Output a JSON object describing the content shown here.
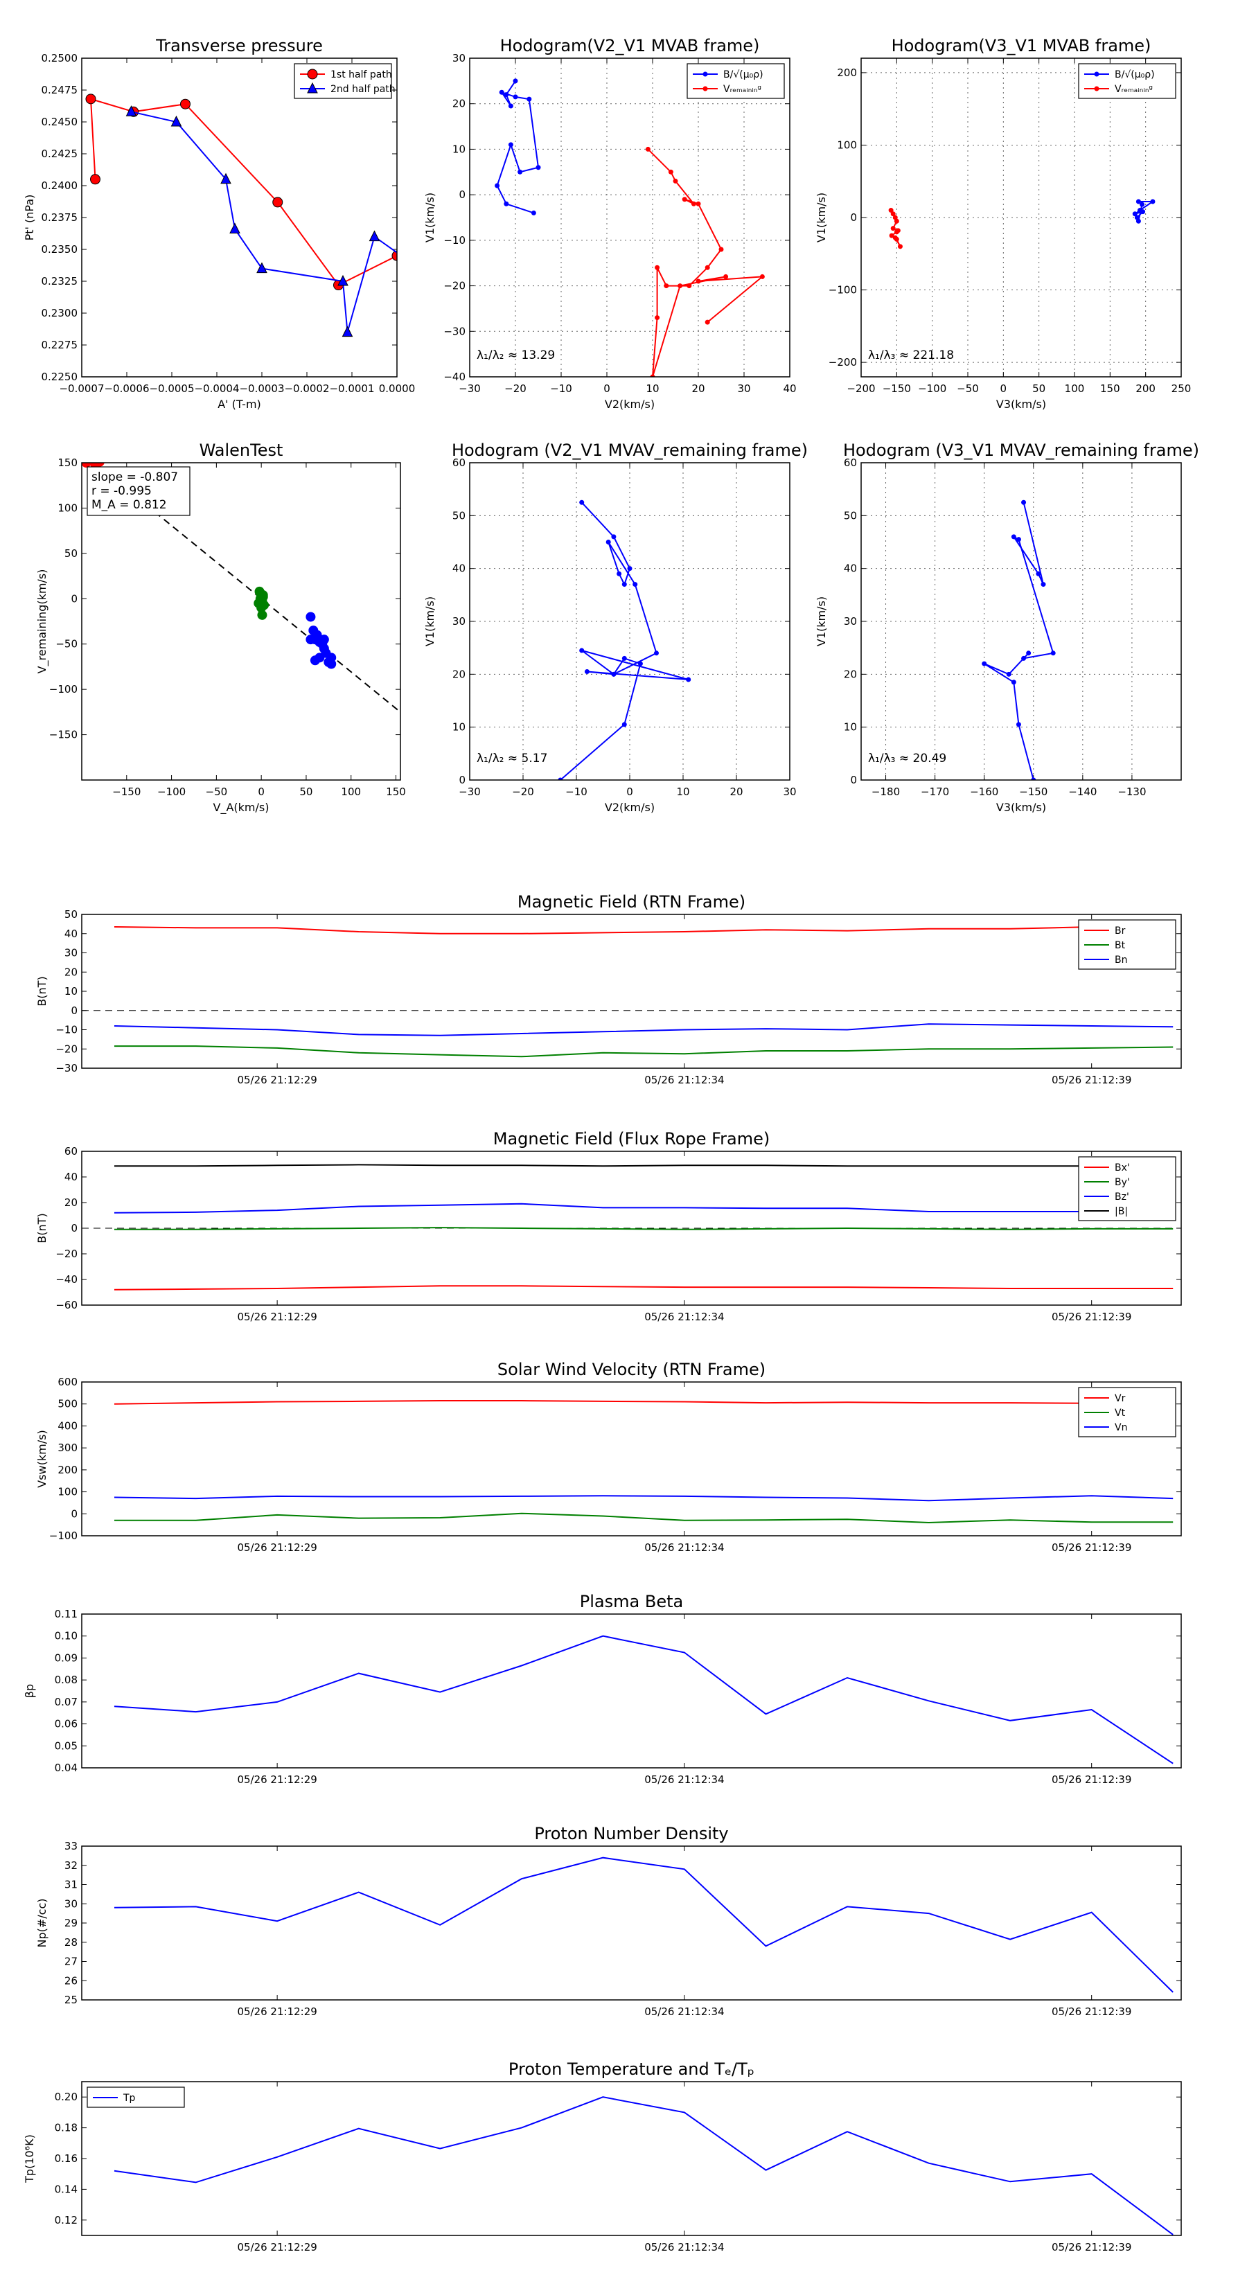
{
  "colors": {
    "red": "#ff0000",
    "blue": "#0000ff",
    "green": "#008000",
    "black": "#000000"
  },
  "chart_data": [
    {
      "type": "line",
      "title": "Transverse pressure",
      "xlabel": "A' (T-m)",
      "ylabel": "Pt' (nPa)",
      "xlim": [
        -0.0007,
        0.0
      ],
      "ylim": [
        0.225,
        0.25
      ],
      "xticks": [
        -0.0007,
        -0.0006,
        -0.0005,
        -0.0004,
        -0.0003,
        -0.0002,
        -0.0001,
        0.0
      ],
      "xtick_labels": [
        "−0.0007",
        "−0.0006",
        "−0.0005",
        "−0.0004",
        "−0.0003",
        "−0.0002",
        "−0.0001",
        "0.0000"
      ],
      "yticks": [
        0.225,
        0.2275,
        0.23,
        0.2325,
        0.235,
        0.2375,
        0.24,
        0.2425,
        0.245,
        0.2475,
        0.25
      ],
      "ytick_labels": [
        "0.2250",
        "0.2275",
        "0.2300",
        "0.2325",
        "0.2350",
        "0.2375",
        "0.2400",
        "0.2425",
        "0.2450",
        "0.2475",
        "0.2500"
      ],
      "legend": "top-right",
      "grid": false,
      "series": [
        {
          "name": "1st half path",
          "color": "#ff0000",
          "marker": "circle",
          "x": [
            -0.00067,
            -0.00068,
            -0.000585,
            -0.00047,
            -0.000265,
            -0.00013,
            0.0,
            0.00012
          ],
          "y": [
            0.2405,
            0.2468,
            0.2458,
            0.2464,
            0.2387,
            0.2322,
            0.2345,
            0.2335
          ]
        },
        {
          "name": "2nd half path",
          "color": "#0000ff",
          "marker": "triangle",
          "x": [
            -0.00059,
            -0.00049,
            -0.00038,
            -0.00036,
            -0.0003,
            -0.00012,
            -0.00011,
            -5e-05,
            3e-05
          ],
          "y": [
            0.2458,
            0.245,
            0.2405,
            0.2366,
            0.2335,
            0.2325,
            0.2285,
            0.236,
            0.234
          ]
        }
      ]
    },
    {
      "type": "line",
      "title": "Hodogram(V2_V1 MVAB frame)",
      "xlabel": "V2(km/s)",
      "ylabel": "V1(km/s)",
      "xlim": [
        -30,
        40
      ],
      "ylim": [
        -40,
        30
      ],
      "xticks": [
        -30,
        -20,
        -10,
        0,
        10,
        20,
        30,
        40
      ],
      "yticks": [
        -40,
        -30,
        -20,
        -10,
        0,
        10,
        20,
        30
      ],
      "grid": true,
      "legend": "top-right",
      "annotation": "λ₁/λ₂ ≈ 13.29",
      "series": [
        {
          "name": "B/√(μ₀ρ)",
          "color": "#0000ff",
          "x": [
            -20,
            -22,
            -21,
            -23,
            -20,
            -17,
            -15,
            -19,
            -21,
            -24,
            -22,
            -16
          ],
          "y": [
            25,
            22,
            19.5,
            22.5,
            21.5,
            21,
            6,
            5,
            11,
            2,
            -2,
            -4
          ]
        },
        {
          "name": "Vᵣₑₘₐᵢₙᵢₙᵍ",
          "color": "#ff0000",
          "x": [
            9,
            14,
            15,
            19,
            17,
            20,
            25,
            22,
            18,
            13,
            11,
            11,
            10,
            16,
            26,
            20,
            34,
            22
          ],
          "y": [
            10,
            5,
            3,
            -2,
            -1,
            -2,
            -12,
            -16,
            -20,
            -20,
            -16,
            -27,
            -40,
            -20,
            -18,
            -19,
            -18,
            -28
          ]
        }
      ]
    },
    {
      "type": "line",
      "title": "Hodogram(V3_V1 MVAB frame)",
      "xlabel": "V3(km/s)",
      "ylabel": "V1(km/s)",
      "xlim": [
        -200,
        250
      ],
      "ylim": [
        -220,
        220
      ],
      "xticks": [
        -200,
        -150,
        -100,
        -50,
        0,
        50,
        100,
        150,
        200,
        250
      ],
      "yticks": [
        -200,
        -100,
        0,
        100,
        200
      ],
      "grid": true,
      "legend": "top-right",
      "annotation": "λ₁/λ₃ ≈ 221.18",
      "series": [
        {
          "name": "B/√(μ₀ρ)",
          "color": "#0000ff",
          "x": [
            190,
            210,
            192,
            185,
            196,
            188,
            190,
            195
          ],
          "y": [
            22,
            22,
            10,
            5,
            8,
            0,
            -5,
            18
          ]
        },
        {
          "name": "Vᵣₑₘₐᵢₙᵢₙᵍ",
          "color": "#ff0000",
          "x": [
            -158,
            -155,
            -152,
            -150,
            -155,
            -148,
            -150,
            -157,
            -152,
            -145,
            -150
          ],
          "y": [
            10,
            5,
            0,
            -5,
            -15,
            -18,
            -20,
            -25,
            -28,
            -40,
            -30
          ]
        }
      ]
    },
    {
      "type": "scatter",
      "title": "WalenTest",
      "xlabel": "V_A(km/s)",
      "ylabel": "V_remaining(km/s)",
      "xlim": [
        -200,
        155
      ],
      "ylim": [
        -200,
        150
      ],
      "xticks": [
        -150,
        -100,
        -50,
        0,
        50,
        100,
        150
      ],
      "yticks": [
        -150,
        -100,
        -50,
        0,
        50,
        100,
        150
      ],
      "grid": false,
      "annotation": [
        "slope = -0.807",
        "r = -0.995",
        "M_A = 0.812"
      ],
      "fit_line": {
        "slope": -0.807,
        "x": [
          -200,
          155
        ]
      },
      "series": [
        {
          "name": "",
          "color": "#ff0000",
          "x": [
            -195,
            -190,
            -185,
            -180
          ],
          "y": [
            150,
            152,
            148,
            151
          ]
        },
        {
          "name": "",
          "color": "#008000",
          "x": [
            -2,
            0,
            2,
            -1,
            1,
            -3,
            3,
            0,
            -2,
            2,
            1,
            -1
          ],
          "y": [
            8,
            5,
            2,
            0,
            -3,
            -5,
            -7,
            -10,
            -4,
            4,
            -18,
            6
          ]
        },
        {
          "name": "",
          "color": "#0000ff",
          "x": [
            55,
            58,
            60,
            62,
            65,
            68,
            70,
            72,
            75,
            78,
            60,
            65,
            70,
            55,
            62,
            78
          ],
          "y": [
            -20,
            -35,
            -45,
            -40,
            -48,
            -50,
            -45,
            -60,
            -70,
            -65,
            -68,
            -65,
            -55,
            -45,
            -40,
            -72
          ]
        }
      ]
    },
    {
      "type": "line",
      "title": "Hodogram (V2_V1 MVAV_remaining frame)",
      "xlabel": "V2(km/s)",
      "ylabel": "V1(km/s)",
      "xlim": [
        -30,
        30
      ],
      "ylim": [
        0,
        60
      ],
      "xticks": [
        -30,
        -20,
        -10,
        0,
        10,
        20,
        30
      ],
      "yticks": [
        0,
        10,
        20,
        30,
        40,
        50,
        60
      ],
      "grid": true,
      "annotation": "λ₁/λ₂ ≈ 5.17",
      "series": [
        {
          "name": "",
          "color": "#0000ff",
          "x": [
            -9,
            -3,
            0,
            -1,
            -2,
            -4,
            1,
            5,
            -3,
            -9,
            11,
            -8,
            -3,
            -1,
            2,
            -1,
            -13
          ],
          "y": [
            52.5,
            46,
            40,
            37,
            39,
            45,
            37,
            24,
            20,
            24.5,
            19,
            20.5,
            20,
            23,
            22,
            10.5,
            0
          ]
        }
      ]
    },
    {
      "type": "line",
      "title": "Hodogram (V3_V1 MVAV_remaining frame)",
      "xlabel": "V3(km/s)",
      "ylabel": "V1(km/s)",
      "xlim": [
        -185,
        -120
      ],
      "ylim": [
        0,
        60
      ],
      "xticks": [
        -180,
        -170,
        -160,
        -150,
        -140,
        -130
      ],
      "yticks": [
        0,
        10,
        20,
        30,
        40,
        50,
        60
      ],
      "grid": true,
      "annotation": "λ₁/λ₃ ≈ 20.49",
      "series": [
        {
          "name": "",
          "color": "#0000ff",
          "x": [
            -152,
            -148,
            -149,
            -154,
            -153,
            -146,
            -152,
            -151,
            -155,
            -160,
            -154,
            -153,
            -150
          ],
          "y": [
            52.5,
            37,
            39,
            46,
            45.5,
            24,
            23,
            24,
            20,
            22,
            18.5,
            10.5,
            0
          ]
        }
      ]
    },
    {
      "type": "line",
      "title": "Magnetic Field (RTN Frame)",
      "ylabel": "B(nT)",
      "ylim": [
        -30,
        50
      ],
      "yticks": [
        -30,
        -20,
        -10,
        0,
        10,
        20,
        30,
        40,
        50
      ],
      "x_labels": [
        "05/26 21:12:29",
        "05/26 21:12:34",
        "05/26 21:12:39"
      ],
      "x_label_pos": [
        2,
        7,
        12
      ],
      "x": [
        0,
        1,
        2,
        3,
        4,
        5,
        6,
        7,
        8,
        9,
        10,
        11,
        12,
        13
      ],
      "zero_line": true,
      "legend": "top-right",
      "series": [
        {
          "name": "Br",
          "color": "#ff0000",
          "values": [
            43.5,
            43,
            43,
            41,
            40,
            40,
            40.5,
            41,
            42,
            41.5,
            42.5,
            42.5,
            43.5,
            43.5
          ]
        },
        {
          "name": "Bt",
          "color": "#008000",
          "values": [
            -18.5,
            -18.5,
            -19.5,
            -22,
            -23,
            -24,
            -22,
            -22.5,
            -21,
            -21,
            -20,
            -20,
            -19.5,
            -19
          ]
        },
        {
          "name": "Bn",
          "color": "#0000ff",
          "values": [
            -8,
            -9,
            -10,
            -12.5,
            -13,
            -12,
            -11,
            -10,
            -9.5,
            -10,
            -7,
            -7.5,
            -8,
            -8.5
          ]
        }
      ]
    },
    {
      "type": "line",
      "title": "Magnetic Field (Flux Rope Frame)",
      "ylabel": "B(nT)",
      "ylim": [
        -60,
        60
      ],
      "yticks": [
        -60,
        -40,
        -20,
        0,
        20,
        40,
        60
      ],
      "x_labels": [
        "05/26 21:12:29",
        "05/26 21:12:34",
        "05/26 21:12:39"
      ],
      "x_label_pos": [
        2,
        7,
        12
      ],
      "x": [
        0,
        1,
        2,
        3,
        4,
        5,
        6,
        7,
        8,
        9,
        10,
        11,
        12,
        13
      ],
      "zero_line": true,
      "legend": "top-right",
      "series": [
        {
          "name": "Bx'",
          "color": "#ff0000",
          "values": [
            -48,
            -47.5,
            -47,
            -46,
            -45,
            -45,
            -45.5,
            -46,
            -46,
            -46,
            -46.5,
            -47,
            -47,
            -47
          ]
        },
        {
          "name": "By'",
          "color": "#008000",
          "values": [
            -1,
            -1,
            -0.5,
            0,
            0.5,
            0,
            -0.5,
            -1,
            -0.5,
            0,
            -0.5,
            -1,
            -0.5,
            -0.5
          ]
        },
        {
          "name": "Bz'",
          "color": "#0000ff",
          "values": [
            12,
            12.5,
            14,
            17,
            18,
            19,
            16,
            16,
            15.5,
            15.5,
            13,
            13,
            13,
            12.5
          ]
        },
        {
          "name": "|B|",
          "color": "#000000",
          "values": [
            48.5,
            48.5,
            49,
            49.5,
            49,
            49,
            48.5,
            49,
            49,
            48.5,
            48.5,
            48.5,
            48.5,
            48.5
          ]
        }
      ]
    },
    {
      "type": "line",
      "title": "Solar Wind Velocity (RTN Frame)",
      "ylabel": "Vsw(km/s)",
      "ylim": [
        -100,
        600
      ],
      "yticks": [
        -100,
        0,
        100,
        200,
        300,
        400,
        500,
        600
      ],
      "x_labels": [
        "05/26 21:12:29",
        "05/26 21:12:34",
        "05/26 21:12:39"
      ],
      "x_label_pos": [
        2,
        7,
        12
      ],
      "x": [
        0,
        1,
        2,
        3,
        4,
        5,
        6,
        7,
        8,
        9,
        10,
        11,
        12,
        13
      ],
      "legend": "top-right",
      "series": [
        {
          "name": "Vr",
          "color": "#ff0000",
          "values": [
            500,
            505,
            510,
            512,
            515,
            515,
            512,
            510,
            505,
            508,
            505,
            505,
            503,
            505
          ]
        },
        {
          "name": "Vt",
          "color": "#008000",
          "values": [
            -30,
            -30,
            -5,
            -20,
            -18,
            2,
            -10,
            -30,
            -28,
            -25,
            -40,
            -28,
            -38,
            -38
          ]
        },
        {
          "name": "Vn",
          "color": "#0000ff",
          "values": [
            75,
            70,
            80,
            78,
            78,
            80,
            82,
            80,
            75,
            72,
            60,
            72,
            82,
            70
          ]
        }
      ]
    },
    {
      "type": "line",
      "title": "Plasma Beta",
      "ylabel": "βp",
      "ylim": [
        0.04,
        0.11
      ],
      "yticks": [
        0.04,
        0.05,
        0.06,
        0.07,
        0.08,
        0.09,
        0.1,
        0.11
      ],
      "ytick_labels": [
        "0.04",
        "0.05",
        "0.06",
        "0.07",
        "0.08",
        "0.09",
        "0.10",
        "0.11"
      ],
      "x_labels": [
        "05/26 21:12:29",
        "05/26 21:12:34",
        "05/26 21:12:39"
      ],
      "x_label_pos": [
        2,
        7,
        12
      ],
      "x": [
        0,
        1,
        2,
        3,
        4,
        5,
        6,
        7,
        8,
        9,
        10,
        11,
        12,
        13
      ],
      "series": [
        {
          "name": "",
          "color": "#0000ff",
          "values": [
            0.068,
            0.0655,
            0.07,
            0.083,
            0.0745,
            0.0865,
            0.1,
            0.0925,
            0.0645,
            0.081,
            0.0705,
            0.0615,
            0.0665,
            0.042
          ]
        }
      ]
    },
    {
      "type": "line",
      "title": "Proton Number Density",
      "ylabel": "Np(#/cc)",
      "ylim": [
        25,
        33
      ],
      "yticks": [
        25,
        26,
        27,
        28,
        29,
        30,
        31,
        32,
        33
      ],
      "x_labels": [
        "05/26 21:12:29",
        "05/26 21:12:34",
        "05/26 21:12:39"
      ],
      "x_label_pos": [
        2,
        7,
        12
      ],
      "x": [
        0,
        1,
        2,
        3,
        4,
        5,
        6,
        7,
        8,
        9,
        10,
        11,
        12,
        13
      ],
      "series": [
        {
          "name": "",
          "color": "#0000ff",
          "values": [
            29.8,
            29.85,
            29.1,
            30.6,
            28.9,
            31.3,
            32.4,
            31.8,
            27.8,
            29.85,
            29.5,
            28.15,
            29.55,
            25.4
          ]
        }
      ]
    },
    {
      "type": "line",
      "title": "Proton Temperature and Tₑ/Tₚ",
      "ylabel": "Tp(10⁶K)",
      "ylim": [
        0.11,
        0.21
      ],
      "yticks": [
        0.12,
        0.14,
        0.16,
        0.18,
        0.2
      ],
      "ytick_labels": [
        "0.12",
        "0.14",
        "0.16",
        "0.18",
        "0.20"
      ],
      "x_labels": [
        "05/26 21:12:29",
        "05/26 21:12:34",
        "05/26 21:12:39"
      ],
      "x_label_pos": [
        2,
        7,
        12
      ],
      "x": [
        0,
        1,
        2,
        3,
        4,
        5,
        6,
        7,
        8,
        9,
        10,
        11,
        12,
        13
      ],
      "legend": "top-left",
      "series": [
        {
          "name": "Tp",
          "color": "#0000ff",
          "values": [
            0.152,
            0.1445,
            0.161,
            0.1795,
            0.1665,
            0.18,
            0.2,
            0.19,
            0.1525,
            0.1775,
            0.157,
            0.145,
            0.15,
            0.1105
          ]
        }
      ]
    }
  ]
}
